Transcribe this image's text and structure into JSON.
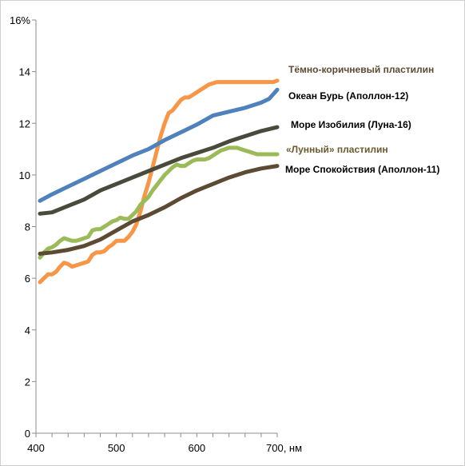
{
  "chart_data": {
    "type": "line",
    "title": "",
    "xlabel": "",
    "ylabel": "",
    "x_unit_label": "700, нм",
    "xlim": [
      400,
      700
    ],
    "ylim": [
      0,
      16
    ],
    "x_ticks": [
      400,
      500,
      600,
      700
    ],
    "x_tick_labels": [
      "400",
      "500",
      "600",
      "700, нм"
    ],
    "y_ticks": [
      0,
      2,
      4,
      6,
      8,
      10,
      12,
      14,
      16
    ],
    "y_tick_labels": [
      "0",
      "2",
      "4",
      "6",
      "8",
      "10",
      "12",
      "14",
      "16%"
    ],
    "grid": false,
    "legend": "direct labels at line ends (right)",
    "series": [
      {
        "name": "Тёмно-коричневый пластилин",
        "color": "#F79646",
        "label_color": "#5C4A32",
        "x": [
          405,
          410,
          415,
          420,
          425,
          430,
          435,
          440,
          445,
          450,
          455,
          460,
          465,
          470,
          475,
          480,
          485,
          490,
          495,
          500,
          505,
          510,
          515,
          520,
          525,
          530,
          535,
          540,
          545,
          550,
          555,
          560,
          565,
          570,
          575,
          580,
          585,
          590,
          595,
          600,
          605,
          610,
          615,
          620,
          625,
          630,
          635,
          640,
          645,
          650,
          655,
          660,
          665,
          670,
          675,
          680,
          685,
          690,
          695,
          700
        ],
        "y": [
          5.85,
          6.0,
          6.15,
          6.15,
          6.25,
          6.45,
          6.6,
          6.55,
          6.45,
          6.5,
          6.55,
          6.6,
          6.65,
          6.9,
          7.0,
          7.0,
          7.05,
          7.2,
          7.3,
          7.45,
          7.45,
          7.45,
          7.6,
          7.8,
          8.1,
          8.6,
          9.2,
          9.7,
          10.3,
          10.9,
          11.5,
          12.0,
          12.4,
          12.5,
          12.7,
          12.9,
          13.0,
          13.0,
          13.1,
          13.2,
          13.3,
          13.4,
          13.5,
          13.55,
          13.6,
          13.6,
          13.6,
          13.6,
          13.6,
          13.6,
          13.6,
          13.6,
          13.6,
          13.6,
          13.6,
          13.6,
          13.6,
          13.6,
          13.6,
          13.65
        ]
      },
      {
        "name": "Океан Бурь  (Аполлон-12)",
        "color": "#4F81BD",
        "label_color": "#000000",
        "x": [
          405,
          420,
          440,
          460,
          480,
          500,
          520,
          540,
          560,
          580,
          600,
          620,
          640,
          660,
          680,
          690,
          700
        ],
        "y": [
          9.0,
          9.25,
          9.55,
          9.85,
          10.15,
          10.45,
          10.75,
          11.0,
          11.35,
          11.65,
          11.95,
          12.3,
          12.45,
          12.6,
          12.8,
          12.95,
          13.3
        ]
      },
      {
        "name": "Море Изобилия (Луна-16)",
        "color": "#4A4A3C",
        "label_color": "#000000",
        "x": [
          405,
          420,
          440,
          460,
          480,
          500,
          520,
          540,
          560,
          580,
          600,
          620,
          640,
          660,
          680,
          700
        ],
        "y": [
          8.5,
          8.55,
          8.8,
          9.05,
          9.4,
          9.65,
          9.9,
          10.15,
          10.4,
          10.65,
          10.85,
          11.05,
          11.3,
          11.5,
          11.7,
          11.85
        ]
      },
      {
        "name": "«Лунный» пластилин",
        "color": "#9BBB59",
        "label_color": "#6B5A2E",
        "x": [
          405,
          410,
          415,
          420,
          425,
          430,
          435,
          440,
          445,
          450,
          455,
          460,
          465,
          470,
          475,
          480,
          485,
          490,
          495,
          500,
          505,
          510,
          515,
          520,
          525,
          530,
          535,
          540,
          545,
          550,
          555,
          560,
          565,
          570,
          575,
          580,
          585,
          590,
          595,
          600,
          605,
          610,
          615,
          620,
          625,
          630,
          635,
          640,
          645,
          650,
          655,
          660,
          665,
          670,
          675,
          680,
          685,
          690,
          695,
          700
        ],
        "y": [
          6.8,
          7.0,
          7.15,
          7.2,
          7.3,
          7.45,
          7.55,
          7.5,
          7.45,
          7.45,
          7.5,
          7.55,
          7.6,
          7.85,
          7.9,
          7.9,
          8.0,
          8.1,
          8.2,
          8.25,
          8.35,
          8.3,
          8.3,
          8.45,
          8.6,
          8.85,
          9.0,
          9.15,
          9.4,
          9.6,
          9.8,
          10.0,
          10.15,
          10.3,
          10.4,
          10.35,
          10.35,
          10.45,
          10.55,
          10.6,
          10.6,
          10.6,
          10.65,
          10.75,
          10.85,
          10.95,
          11.0,
          11.05,
          11.05,
          11.05,
          11.0,
          10.95,
          10.9,
          10.85,
          10.8,
          10.8,
          10.8,
          10.8,
          10.8,
          10.8
        ]
      },
      {
        "name": "Море Спокойствия (Аполлон-11)",
        "color": "#5C4A32",
        "label_color": "#000000",
        "x": [
          405,
          420,
          440,
          460,
          480,
          500,
          520,
          540,
          560,
          580,
          600,
          620,
          640,
          660,
          680,
          700
        ],
        "y": [
          6.95,
          7.0,
          7.1,
          7.25,
          7.5,
          7.85,
          8.2,
          8.45,
          8.75,
          9.1,
          9.4,
          9.65,
          9.9,
          10.1,
          10.25,
          10.35
        ]
      }
    ]
  }
}
